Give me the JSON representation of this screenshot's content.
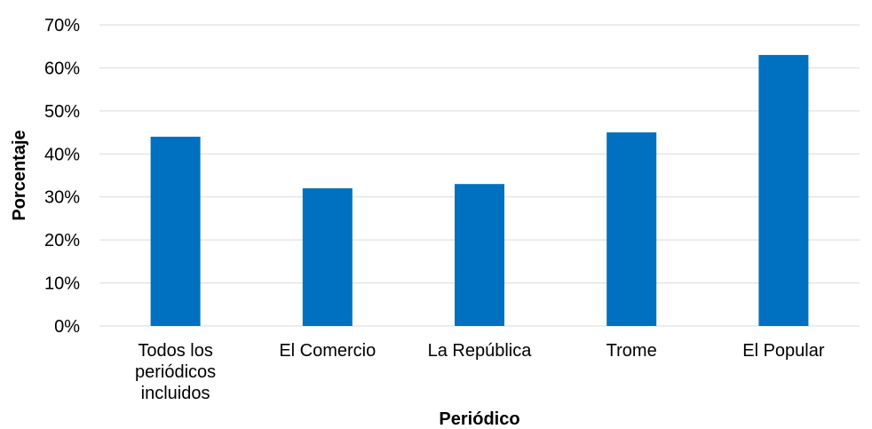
{
  "chart_data": {
    "type": "bar",
    "categories": [
      [
        "Todos los",
        "periódicos",
        "incluidos"
      ],
      [
        "El Comercio"
      ],
      [
        "La República"
      ],
      [
        "Trome"
      ],
      [
        "El Popular"
      ]
    ],
    "values": [
      44,
      32,
      33,
      45,
      63
    ],
    "xlabel": "Periódico",
    "ylabel": "Porcentaje",
    "ylim": [
      0,
      70
    ],
    "yticks": [
      "0%",
      "10%",
      "20%",
      "30%",
      "40%",
      "50%",
      "60%",
      "70%"
    ],
    "grid": true,
    "legend": "none",
    "colors": {
      "bar": "#0070C0",
      "grid": "#D9D9D9"
    }
  }
}
